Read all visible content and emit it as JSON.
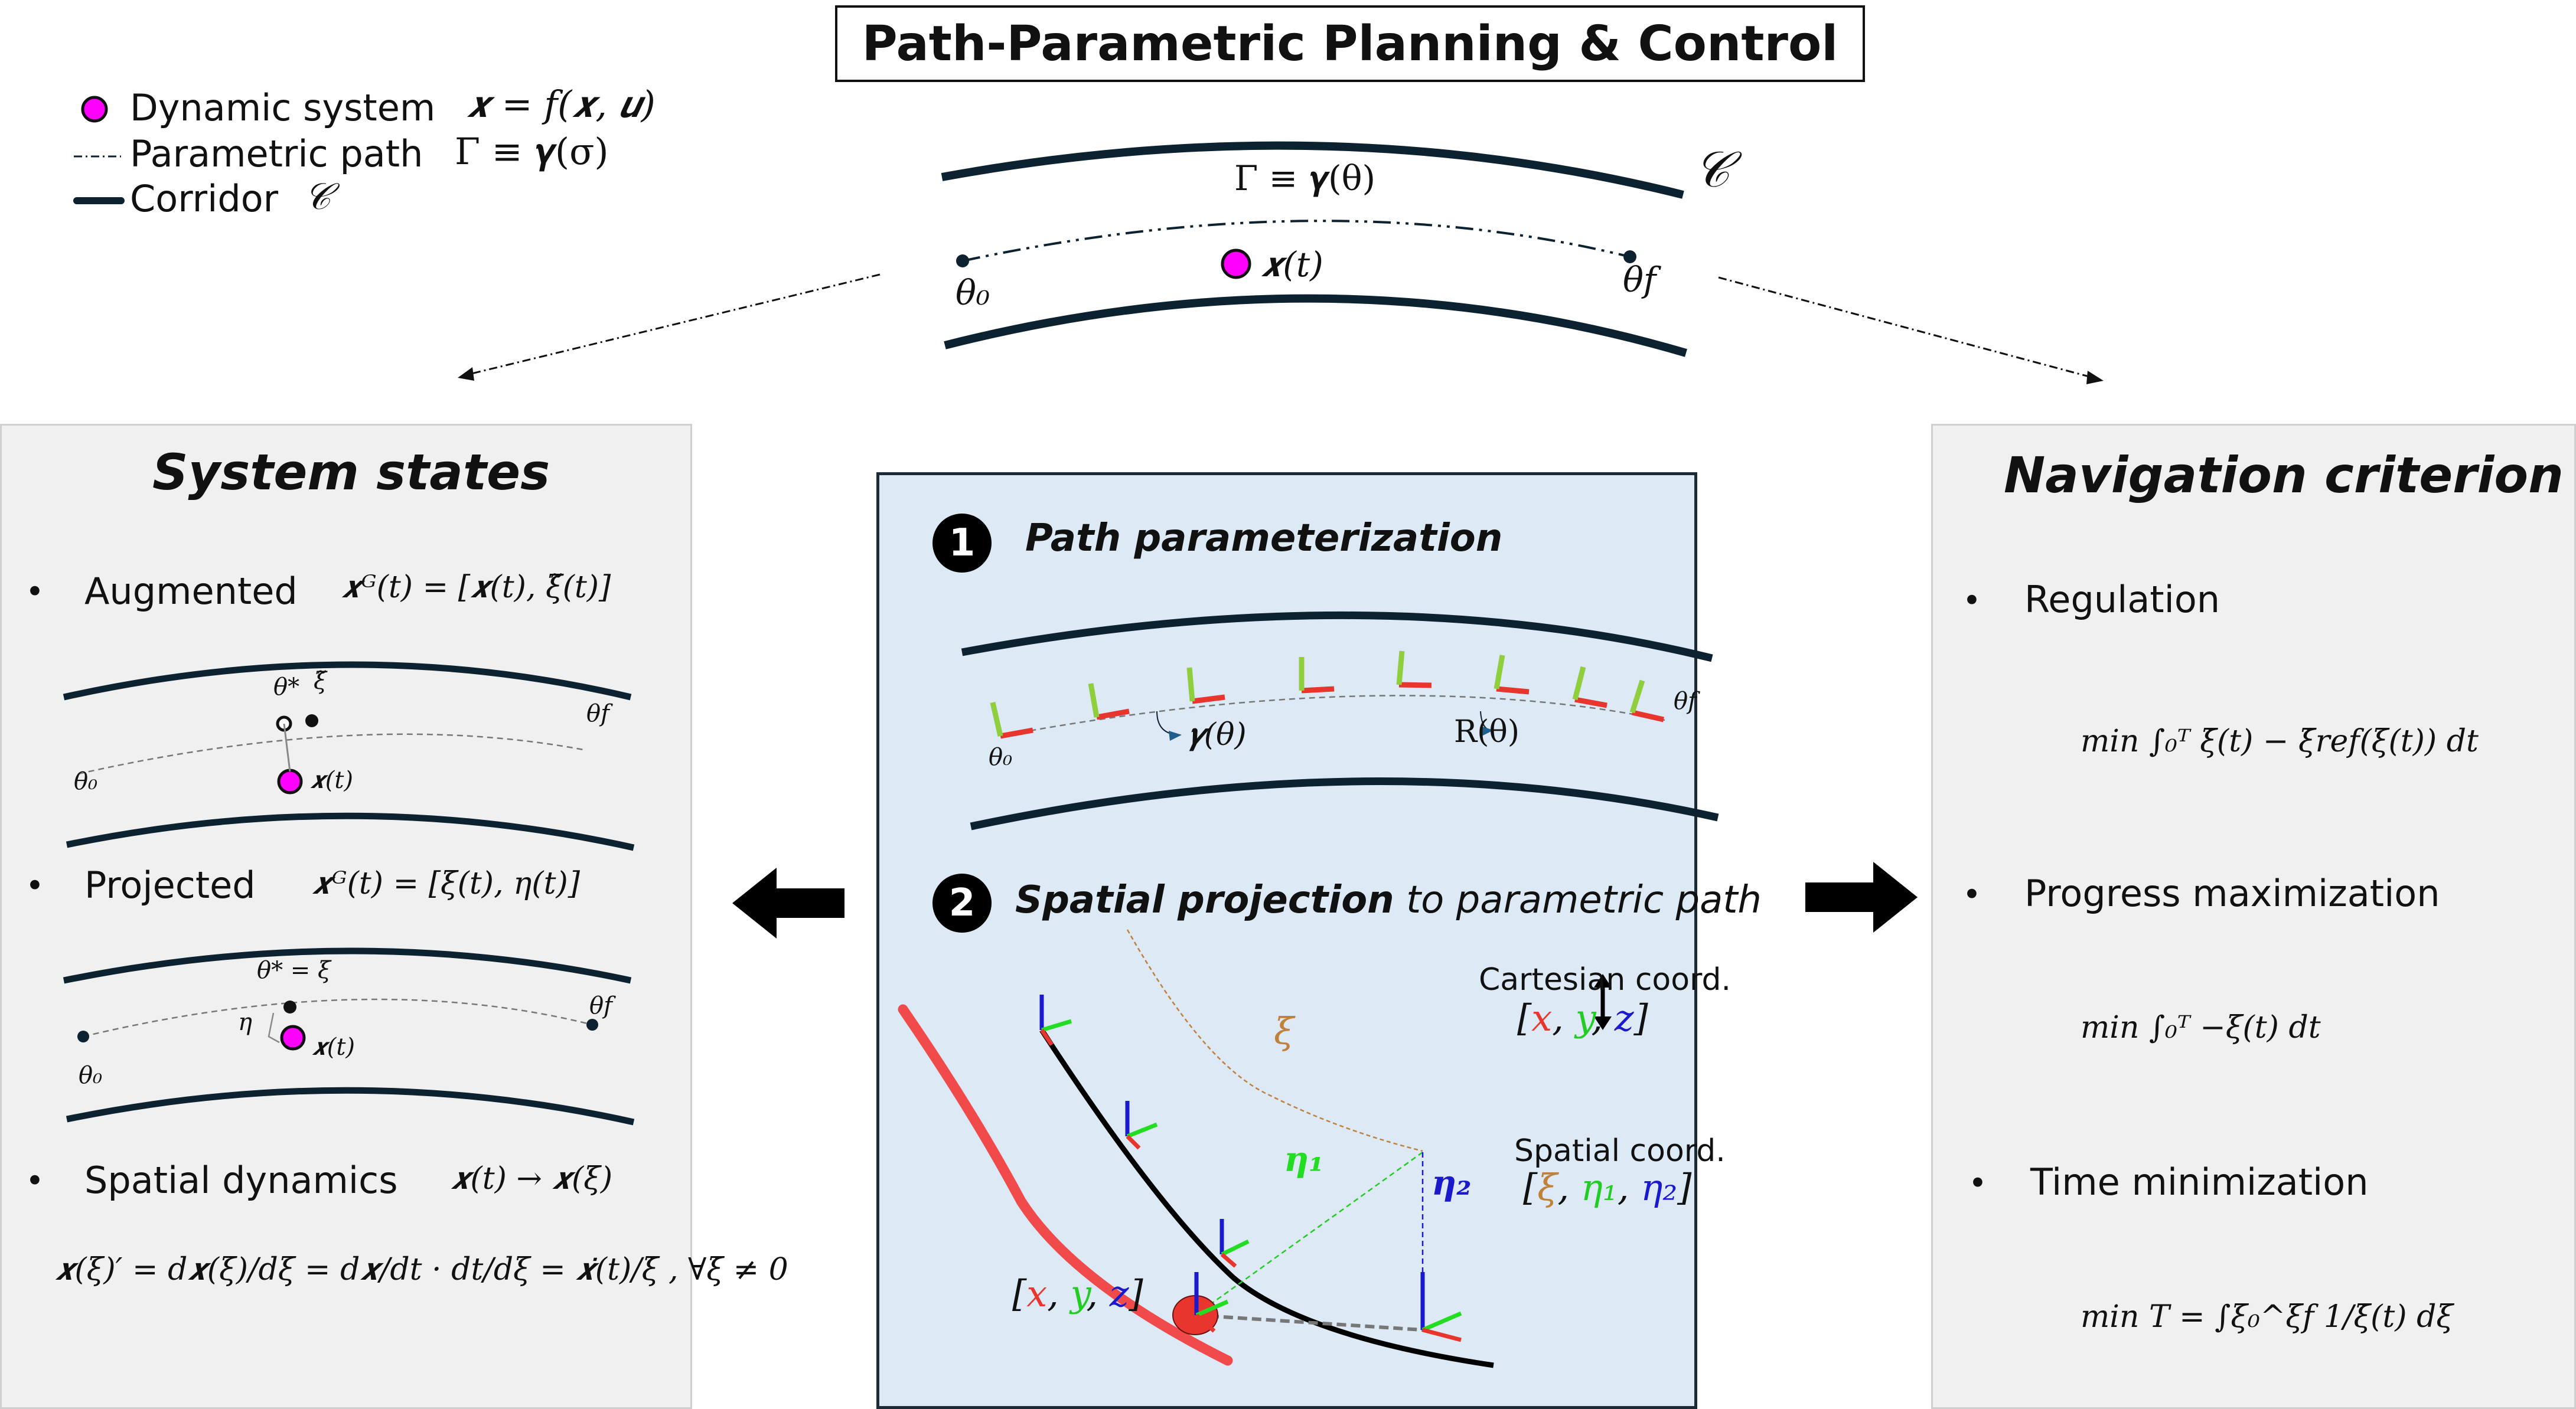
{
  "title": "Path-Parametric Planning & Control",
  "legend": {
    "dynamic_system_label": "Dynamic system",
    "dynamic_system_eq": "𝒙 = f(𝒙, 𝒖)",
    "parametric_path_label": "Parametric path",
    "parametric_path_eq": "Γ ≡ 𝜸(σ)",
    "corridor_label": "Corridor",
    "corridor_symbol": "𝒞"
  },
  "top_diagram": {
    "corridor_symbol": "𝒞",
    "path_label": "Γ ≡ 𝜸(θ)",
    "theta0": "θ₀",
    "thetaf": "θf",
    "state_label": "𝒙(t)"
  },
  "left_panel": {
    "title": "System states",
    "augmented_label": "Augmented",
    "augmented_eq": "𝒙ᴳ(t) = [𝒙(t), ξ̃(t)]",
    "augmented_diagram": {
      "theta_star": "θ*",
      "xi_tilde": "ξ̃",
      "theta0": "θ₀",
      "thetaf": "θf",
      "state": "𝒙(t)"
    },
    "projected_label": "Projected",
    "projected_eq": "𝒙ᴳ(t) = [ξ(t), η(t)]",
    "projected_diagram": {
      "theta_star_eq": "θ* = ξ",
      "eta": "η",
      "theta0": "θ₀",
      "thetaf": "θf",
      "state": "𝒙(t)"
    },
    "spatial_label": "Spatial dynamics",
    "spatial_eq": "𝒙(t) → 𝒙(ξ)",
    "spatial_formula": "𝒙(ξ)′ = d𝒙(ξ)/dξ = d𝒙/dt · dt/dξ = 𝒙̇(t)/ξ̇ ,  ∀ξ̇ ≠ 0"
  },
  "center_panel": {
    "step1_number": "1",
    "step1_title": "Path parameterization",
    "step1_gamma": "𝜸(θ)",
    "step1_R": "R(θ)",
    "step1_theta0": "θ₀",
    "step1_thetaf": "θf",
    "step2_number": "2",
    "step2_title_bold": "Spatial projection",
    "step2_title_rest": " to parametric path",
    "xi_label": "ξ",
    "cartesian_label": "Cartesian coord.",
    "spatial_label": "Spatial coord.",
    "eta1": "𝜼₁",
    "eta2": "𝜼₂",
    "cart_coords": [
      "x",
      "y",
      "z"
    ],
    "spatial_coords": [
      "ξ",
      "η₁",
      "η₂"
    ]
  },
  "right_panel": {
    "title": "Navigation criterion",
    "regulation_label": "Regulation",
    "regulation_eq": "min ∫₀ᵀ ξ̇(t) − ξ̇ref(ξ(t)) dt",
    "progress_label": "Progress maximization",
    "progress_eq": "min ∫₀ᵀ −ξ(t) dt",
    "time_label": "Time minimization",
    "time_eq": "min T = ∫ξ₀^ξf 1/ξ̇(t) dξ"
  },
  "colors": {
    "magenta": "#ff00ff",
    "dark_navy": "#0d2230",
    "panel_gray": "#f0f0f0",
    "panel_blue": "#dde9f5",
    "red": "#e8362e",
    "green": "#22dd22",
    "blue": "#1a1acc",
    "brown": "#c0813a",
    "lime": "#8fce3c"
  }
}
